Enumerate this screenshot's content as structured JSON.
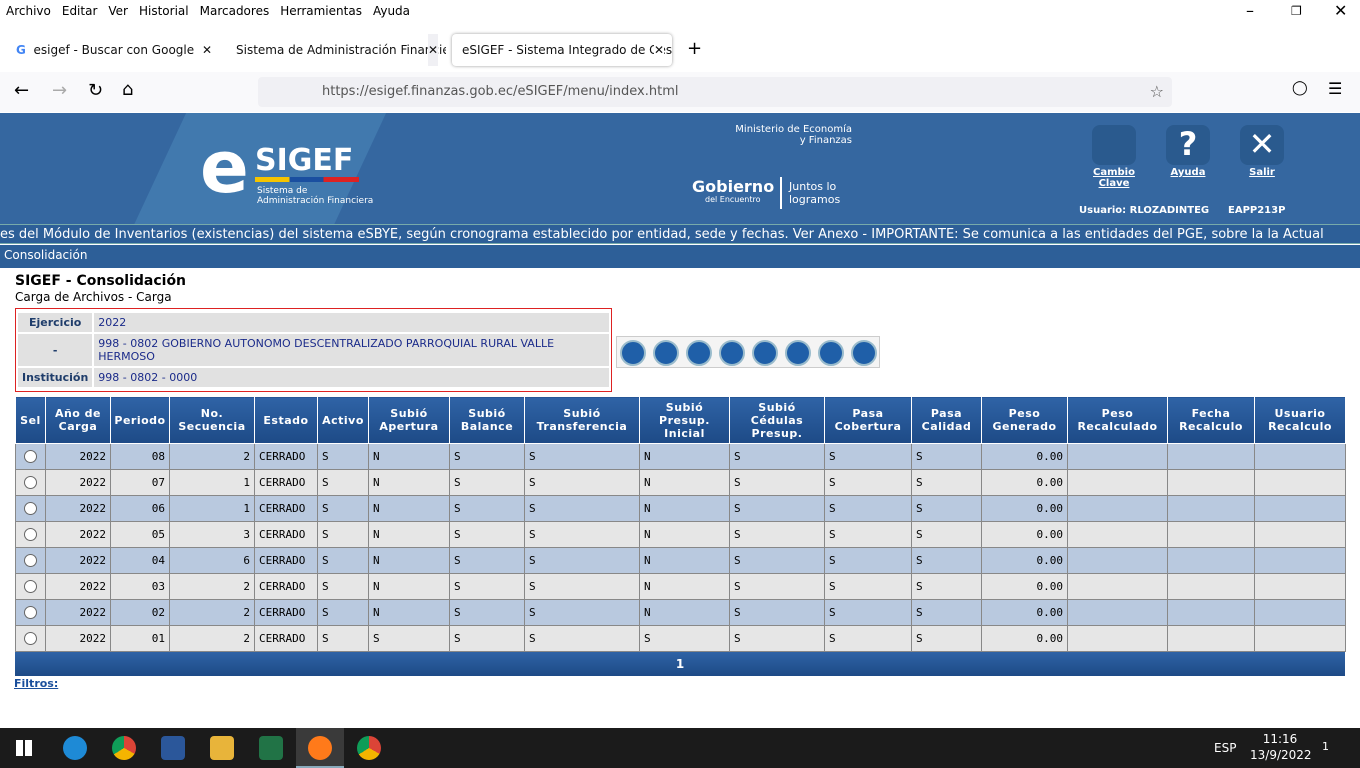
{
  "browser": {
    "menu": [
      "Archivo",
      "Editar",
      "Ver",
      "Historial",
      "Marcadores",
      "Herramientas",
      "Ayuda"
    ],
    "tabs": [
      "esigef - Buscar con Google",
      "Sistema de Administración Financie",
      "eSIGEF - Sistema Integrado de Gesti"
    ],
    "url": "https://esigef.finanzas.gob.ec/eSIGEF/menu/index.html"
  },
  "header": {
    "logo_e": "e",
    "logo_name": "SIGEF",
    "logo_sub": "Sistema de Administración Financiera",
    "ministry": "Ministerio de Economía y Finanzas",
    "gov": "Gobierno",
    "gov_sub": "del Encuentro",
    "slogan": "Juntos lo logramos",
    "buttons": [
      "Cambio Clave",
      "Ayuda",
      "Salir"
    ],
    "user": "Usuario: RLOZADINTEG",
    "code": "EAPP213P"
  },
  "marquee": "es del Módulo de Inventarios (existencias) del sistema eSBYE, según cronograma establecido por entidad, sede y fechas. Ver Anexo - IMPORTANTE: Se comunica a las entidades del PGE, sobre la la Actual",
  "breadcrumb": "Consolidación",
  "page": {
    "title": "SIGEF - Consolidación",
    "subtitle": "Carga de Archivos - Carga"
  },
  "info": {
    "rows": [
      [
        "Ejercicio",
        "2022"
      ],
      [
        "-",
        "998 - 0802 GOBIERNO AUTONOMO DESCENTRALIZADO PARROQUIAL RURAL VALLE HERMOSO"
      ],
      [
        "Institución",
        "998 - 0802 - 0000"
      ]
    ]
  },
  "table": {
    "headers": [
      "Sel",
      "Año de Carga",
      "Periodo",
      "No. Secuencia",
      "Estado",
      "Activo",
      "Subió Apertura",
      "Subió Balance",
      "Subió Transferencia",
      "Subió Presup. Inicial",
      "Subió Cédulas Presup.",
      "Pasa Cobertura",
      "Pasa Calidad",
      "Peso Generado",
      "Peso Recalculado",
      "Fecha Recalculo",
      "Usuario Recalculo"
    ],
    "rows": [
      [
        "2022",
        "08",
        "2",
        "CERRADO",
        "S",
        "N",
        "S",
        "S",
        "N",
        "S",
        "S",
        "S",
        "0.00"
      ],
      [
        "2022",
        "07",
        "1",
        "CERRADO",
        "S",
        "N",
        "S",
        "S",
        "N",
        "S",
        "S",
        "S",
        "0.00"
      ],
      [
        "2022",
        "06",
        "1",
        "CERRADO",
        "S",
        "N",
        "S",
        "S",
        "N",
        "S",
        "S",
        "S",
        "0.00"
      ],
      [
        "2022",
        "05",
        "3",
        "CERRADO",
        "S",
        "N",
        "S",
        "S",
        "N",
        "S",
        "S",
        "S",
        "0.00"
      ],
      [
        "2022",
        "04",
        "6",
        "CERRADO",
        "S",
        "N",
        "S",
        "S",
        "N",
        "S",
        "S",
        "S",
        "0.00"
      ],
      [
        "2022",
        "03",
        "2",
        "CERRADO",
        "S",
        "N",
        "S",
        "S",
        "N",
        "S",
        "S",
        "S",
        "0.00"
      ],
      [
        "2022",
        "02",
        "2",
        "CERRADO",
        "S",
        "N",
        "S",
        "S",
        "N",
        "S",
        "S",
        "S",
        "0.00"
      ],
      [
        "2022",
        "01",
        "2",
        "CERRADO",
        "S",
        "S",
        "S",
        "S",
        "S",
        "S",
        "S",
        "S",
        "0.00"
      ]
    ],
    "page": "1"
  },
  "filters": "Filtros:",
  "taskbar": {
    "lang": "ESP",
    "time": "11:16",
    "date": "13/9/2022",
    "notifications": "1"
  }
}
